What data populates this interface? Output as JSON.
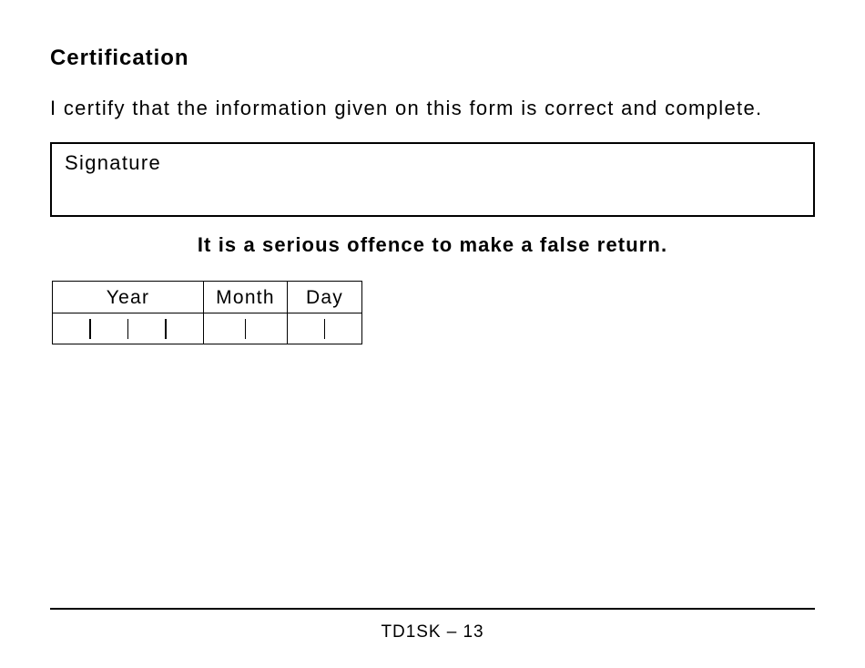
{
  "heading": "Certification",
  "statement": "I certify that the information given on this form is correct and complete.",
  "signature_label": "Signature",
  "warning": "It is a serious offence to make a false return.",
  "date_fields": {
    "year_label": "Year",
    "month_label": "Month",
    "day_label": "Day",
    "year_digits": 4,
    "month_digits": 2,
    "day_digits": 2
  },
  "footer": "TD1SK – 13",
  "colors": {
    "background": "#ffffff",
    "text": "#000000",
    "border": "#000000"
  },
  "typography": {
    "heading_fontsize": 24,
    "body_fontsize": 22,
    "footer_fontsize": 19,
    "font_family": "Arial"
  }
}
